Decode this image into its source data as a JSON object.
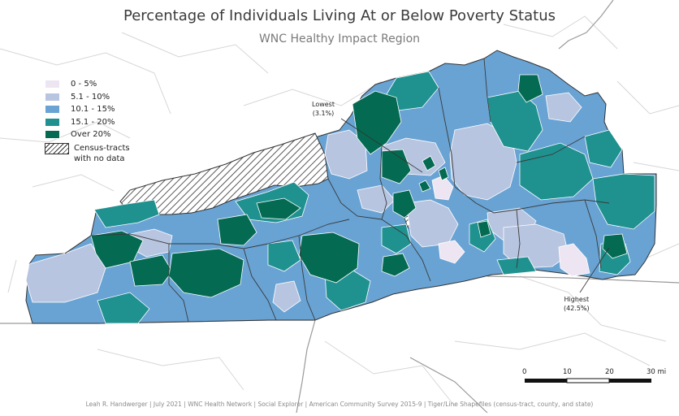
{
  "title": "Percentage of Individuals Living At or Below Poverty Status",
  "subtitle": "WNC Healthy Impact Region",
  "legend": {
    "items": [
      {
        "label": "0 - 5%",
        "color": "#ede6f2"
      },
      {
        "label": "5.1 - 10%",
        "color": "#b8c5e0"
      },
      {
        "label": "10.1 - 15%",
        "color": "#68a3d4"
      },
      {
        "label": "15.1 - 20%",
        "color": "#1f918f"
      },
      {
        "label": "Over 20%",
        "color": "#046b52"
      }
    ],
    "no_data_line1": "Census-tracts",
    "no_data_line2": "with no data"
  },
  "callouts": {
    "lowest_label": "Lowest",
    "lowest_value": "(3.1%)",
    "highest_label": "Highest",
    "highest_value": "(42.5%)"
  },
  "scale_bar": {
    "ticks": [
      "0",
      "10",
      "20",
      "30 mi"
    ]
  },
  "footer": "Leah R. Handwerger | July 2021 | WNC Health Network | Social Explorer | American Community Survey 2015-9 | Tiger/Line Shapefiles (census-tract, county, and state)"
}
